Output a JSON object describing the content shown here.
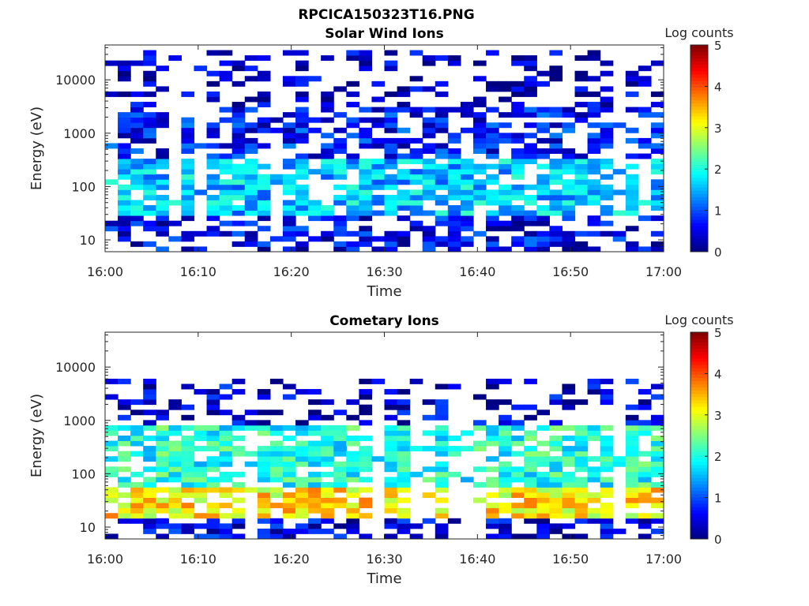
{
  "figure": {
    "title": "RPCICA150323T16.PNG"
  },
  "colors": {
    "colormap": "jet"
  },
  "chart_data": [
    {
      "type": "heatmap",
      "title": "Solar Wind Ions",
      "xlabel": "Time",
      "ylabel": "Energy (eV)",
      "x_tick_labels": [
        "16:00",
        "16:10",
        "16:20",
        "16:30",
        "16:40",
        "16:50",
        "17:00"
      ],
      "x_range": [
        "16:00",
        "17:00"
      ],
      "y_scale": "log",
      "y_tick_labels": [
        "10",
        "100",
        "1000",
        "10000"
      ],
      "y_range": [
        6,
        45000
      ],
      "colorbar": {
        "label": "Log counts",
        "range": [
          0,
          5
        ],
        "tick_labels": [
          "0",
          "1",
          "2",
          "3",
          "4",
          "5"
        ]
      },
      "dominant_levels": [
        {
          "energy_range_eV": [
            6,
            30
          ],
          "log_counts": 0.6
        },
        {
          "energy_range_eV": [
            30,
            350
          ],
          "log_counts": 1.6
        },
        {
          "energy_range_eV": [
            350,
            3000
          ],
          "log_counts": 0.7
        },
        {
          "energy_range_eV": [
            3000,
            40000
          ],
          "log_counts": 0.3
        }
      ]
    },
    {
      "type": "heatmap",
      "title": "Cometary Ions",
      "xlabel": "Time",
      "ylabel": "Energy (eV)",
      "x_tick_labels": [
        "16:00",
        "16:10",
        "16:20",
        "16:30",
        "16:40",
        "16:50",
        "17:00"
      ],
      "x_range": [
        "16:00",
        "17:00"
      ],
      "y_scale": "log",
      "y_tick_labels": [
        "10",
        "100",
        "1000",
        "10000"
      ],
      "y_range": [
        6,
        45000
      ],
      "colorbar": {
        "label": "Log counts",
        "range": [
          0,
          5
        ],
        "tick_labels": [
          "0",
          "1",
          "2",
          "3",
          "4",
          "5"
        ]
      },
      "dominant_levels": [
        {
          "energy_range_eV": [
            6,
            16
          ],
          "log_counts": 0.5
        },
        {
          "energy_range_eV": [
            16,
            60
          ],
          "log_counts": 3.2
        },
        {
          "energy_range_eV": [
            60,
            800
          ],
          "log_counts": 2.0
        },
        {
          "energy_range_eV": [
            800,
            6000
          ],
          "log_counts": 0.4
        }
      ]
    }
  ]
}
